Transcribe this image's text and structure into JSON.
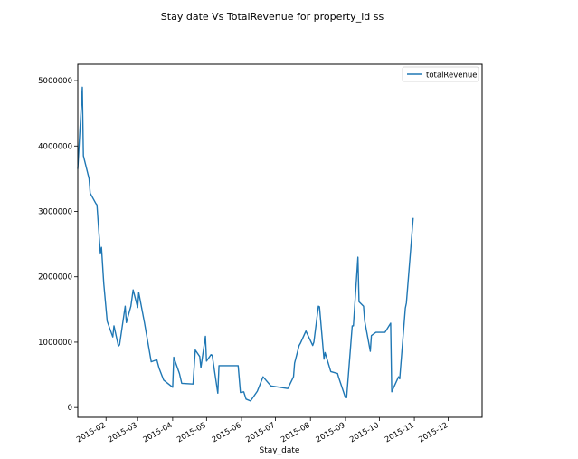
{
  "chart_data": {
    "type": "line",
    "title": "Stay date Vs TotalRevenue for property_id ss",
    "xlabel": "Stay_date",
    "ylabel": "",
    "legend": {
      "placement": "top-right",
      "entries": [
        "totalRevenue"
      ]
    },
    "grid": false,
    "xlim": [
      "2015-01-07",
      "2015-12-31"
    ],
    "ylim": [
      -150000,
      5250000
    ],
    "x_tick_labels": [
      "2015-02",
      "2015-03",
      "2015-04",
      "2015-05",
      "2015-06",
      "2015-07",
      "2015-08",
      "2015-09",
      "2015-10",
      "2015-11",
      "2015-12"
    ],
    "x_tick_dates": [
      "2015-02-01",
      "2015-03-01",
      "2015-04-01",
      "2015-05-01",
      "2015-06-01",
      "2015-07-01",
      "2015-08-01",
      "2015-09-01",
      "2015-10-01",
      "2015-11-01",
      "2015-12-01"
    ],
    "y_ticks": [
      0,
      1000000,
      2000000,
      3000000,
      4000000,
      5000000
    ],
    "y_tick_labels": [
      "0",
      "1000000",
      "2000000",
      "3000000",
      "4000000",
      "5000000"
    ],
    "series": [
      {
        "name": "totalRevenue",
        "color": "#1f77b4",
        "points": [
          [
            "2015-01-07",
            3650000
          ],
          [
            "2015-01-11",
            4900000
          ],
          [
            "2015-01-12",
            3850000
          ],
          [
            "2015-01-17",
            3500000
          ],
          [
            "2015-01-18",
            3280000
          ],
          [
            "2015-01-23",
            3120000
          ],
          [
            "2015-01-24",
            3100000
          ],
          [
            "2015-01-27",
            2350000
          ],
          [
            "2015-01-28",
            2450000
          ],
          [
            "2015-01-30",
            1900000
          ],
          [
            "2015-02-02",
            1320000
          ],
          [
            "2015-02-07",
            1080000
          ],
          [
            "2015-02-08",
            1250000
          ],
          [
            "2015-02-12",
            940000
          ],
          [
            "2015-02-13",
            960000
          ],
          [
            "2015-02-18",
            1550000
          ],
          [
            "2015-02-19",
            1300000
          ],
          [
            "2015-02-23",
            1550000
          ],
          [
            "2015-02-25",
            1800000
          ],
          [
            "2015-03-01",
            1530000
          ],
          [
            "2015-03-02",
            1760000
          ],
          [
            "2015-03-07",
            1300000
          ],
          [
            "2015-03-13",
            700000
          ],
          [
            "2015-03-18",
            730000
          ],
          [
            "2015-03-20",
            600000
          ],
          [
            "2015-03-24",
            420000
          ],
          [
            "2015-04-01",
            310000
          ],
          [
            "2015-04-02",
            770000
          ],
          [
            "2015-04-07",
            520000
          ],
          [
            "2015-04-09",
            370000
          ],
          [
            "2015-04-19",
            360000
          ],
          [
            "2015-04-21",
            880000
          ],
          [
            "2015-04-25",
            780000
          ],
          [
            "2015-04-26",
            610000
          ],
          [
            "2015-04-30",
            1090000
          ],
          [
            "2015-05-01",
            710000
          ],
          [
            "2015-05-05",
            810000
          ],
          [
            "2015-05-06",
            800000
          ],
          [
            "2015-05-11",
            220000
          ],
          [
            "2015-05-12",
            640000
          ],
          [
            "2015-05-20",
            640000
          ],
          [
            "2015-05-29",
            640000
          ],
          [
            "2015-05-31",
            230000
          ],
          [
            "2015-06-03",
            240000
          ],
          [
            "2015-06-05",
            130000
          ],
          [
            "2015-06-09",
            100000
          ],
          [
            "2015-06-15",
            250000
          ],
          [
            "2015-06-20",
            470000
          ],
          [
            "2015-06-27",
            330000
          ],
          [
            "2015-07-12",
            290000
          ],
          [
            "2015-07-17",
            470000
          ],
          [
            "2015-07-18",
            680000
          ],
          [
            "2015-07-22",
            950000
          ],
          [
            "2015-07-23",
            980000
          ],
          [
            "2015-07-28",
            1170000
          ],
          [
            "2015-08-03",
            950000
          ],
          [
            "2015-08-04",
            1000000
          ],
          [
            "2015-08-08",
            1550000
          ],
          [
            "2015-08-09",
            1540000
          ],
          [
            "2015-08-13",
            740000
          ],
          [
            "2015-08-14",
            840000
          ],
          [
            "2015-08-19",
            550000
          ],
          [
            "2015-08-25",
            520000
          ],
          [
            "2015-08-26",
            460000
          ],
          [
            "2015-09-01",
            150000
          ],
          [
            "2015-09-02",
            150000
          ],
          [
            "2015-09-07",
            1250000
          ],
          [
            "2015-09-08",
            1250000
          ],
          [
            "2015-09-12",
            2300000
          ],
          [
            "2015-09-13",
            1620000
          ],
          [
            "2015-09-17",
            1550000
          ],
          [
            "2015-09-18",
            1330000
          ],
          [
            "2015-09-23",
            860000
          ],
          [
            "2015-09-24",
            1100000
          ],
          [
            "2015-09-28",
            1150000
          ],
          [
            "2015-10-06",
            1150000
          ],
          [
            "2015-10-11",
            1290000
          ],
          [
            "2015-10-12",
            240000
          ],
          [
            "2015-10-18",
            470000
          ],
          [
            "2015-10-19",
            440000
          ],
          [
            "2015-10-24",
            1520000
          ],
          [
            "2015-10-25",
            1600000
          ],
          [
            "2015-10-31",
            2900000
          ]
        ]
      }
    ]
  }
}
